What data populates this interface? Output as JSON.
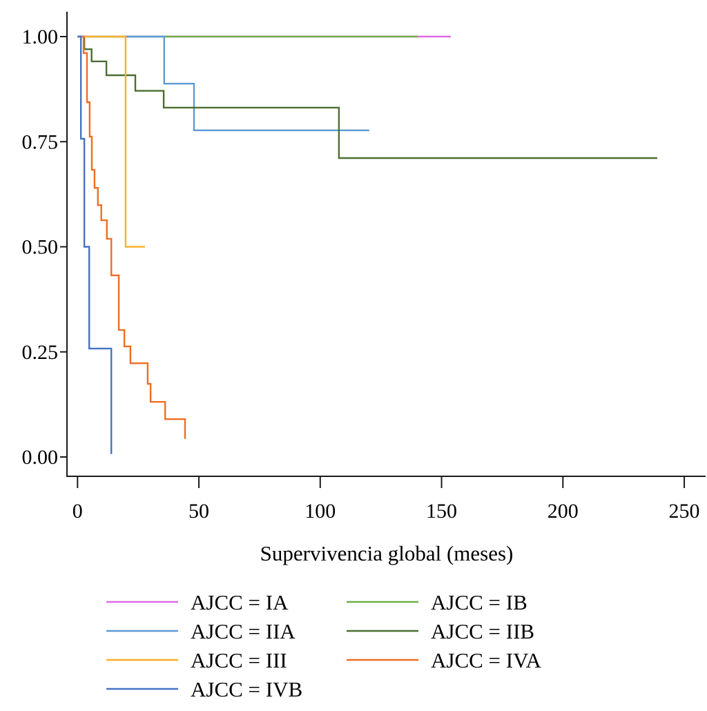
{
  "chart_data": {
    "type": "line",
    "subtype": "kaplan-meier step",
    "title": "",
    "xlabel": "Supervivencia global (meses)",
    "ylabel": "",
    "xlim": [
      -4,
      260
    ],
    "ylim": [
      -0.045,
      1.06
    ],
    "x_ticks": [
      0,
      50,
      100,
      150,
      200,
      250
    ],
    "x_tick_labels": [
      "0",
      "50",
      "100",
      "150",
      "200",
      "250"
    ],
    "y_ticks": [
      0,
      0.25,
      0.5,
      0.75,
      1.0
    ],
    "y_tick_labels": [
      "0.00",
      "0.25",
      "0.50",
      "0.75",
      "1.00"
    ],
    "grid": false,
    "legend_position": "bottom",
    "series": [
      {
        "name": "AJCC = IA",
        "color": "#e06ae6",
        "steps": [
          [
            0,
            1.0
          ],
          [
            153.8,
            1.0
          ]
        ]
      },
      {
        "name": "AJCC = IB",
        "color": "#70ad47",
        "steps": [
          [
            0,
            1.0
          ],
          [
            140.2,
            1.0
          ]
        ]
      },
      {
        "name": "AJCC = IIA",
        "color": "#5b9bd5",
        "steps": [
          [
            0,
            1.0
          ],
          [
            35.7,
            0.888
          ],
          [
            48.0,
            0.777
          ],
          [
            120.2,
            0.777
          ]
        ]
      },
      {
        "name": "AJCC = IIB",
        "color": "#4a6e30",
        "steps": [
          [
            2.0,
            1.0
          ],
          [
            2.8,
            0.97
          ],
          [
            5.8,
            0.941
          ],
          [
            11.9,
            0.908
          ],
          [
            23.8,
            0.871
          ],
          [
            35.5,
            0.831
          ],
          [
            107.7,
            0.711
          ],
          [
            238.9,
            0.711
          ]
        ]
      },
      {
        "name": "AJCC = III",
        "color": "#fbb02a",
        "steps": [
          [
            2.0,
            1.0
          ],
          [
            19.8,
            0.5
          ],
          [
            27.8,
            0.5
          ]
        ]
      },
      {
        "name": "AJCC = IVA",
        "color": "#ef6d22",
        "steps": [
          [
            2.0,
            1.0
          ],
          [
            2.5,
            0.961
          ],
          [
            3.9,
            0.844
          ],
          [
            5.0,
            0.762
          ],
          [
            5.9,
            0.683
          ],
          [
            7.0,
            0.64
          ],
          [
            8.4,
            0.599
          ],
          [
            9.8,
            0.563
          ],
          [
            12.1,
            0.519
          ],
          [
            13.9,
            0.432
          ],
          [
            17.0,
            0.302
          ],
          [
            19.3,
            0.263
          ],
          [
            21.8,
            0.223
          ],
          [
            28.9,
            0.174
          ],
          [
            30.1,
            0.131
          ],
          [
            36.1,
            0.09
          ],
          [
            44.3,
            0.043
          ]
        ]
      },
      {
        "name": "AJCC = IVB",
        "color": "#4472c4",
        "steps": [
          [
            0,
            1.0
          ],
          [
            1.4,
            0.757
          ],
          [
            2.8,
            0.5
          ],
          [
            4.8,
            0.258
          ],
          [
            13.9,
            0.007
          ]
        ]
      }
    ],
    "legend_layout": [
      [
        "AJCC = IA",
        "AJCC = IB"
      ],
      [
        "AJCC = IIA",
        "AJCC = IIB"
      ],
      [
        "AJCC = III",
        "AJCC = IVA"
      ],
      [
        "AJCC = IVB"
      ]
    ]
  }
}
